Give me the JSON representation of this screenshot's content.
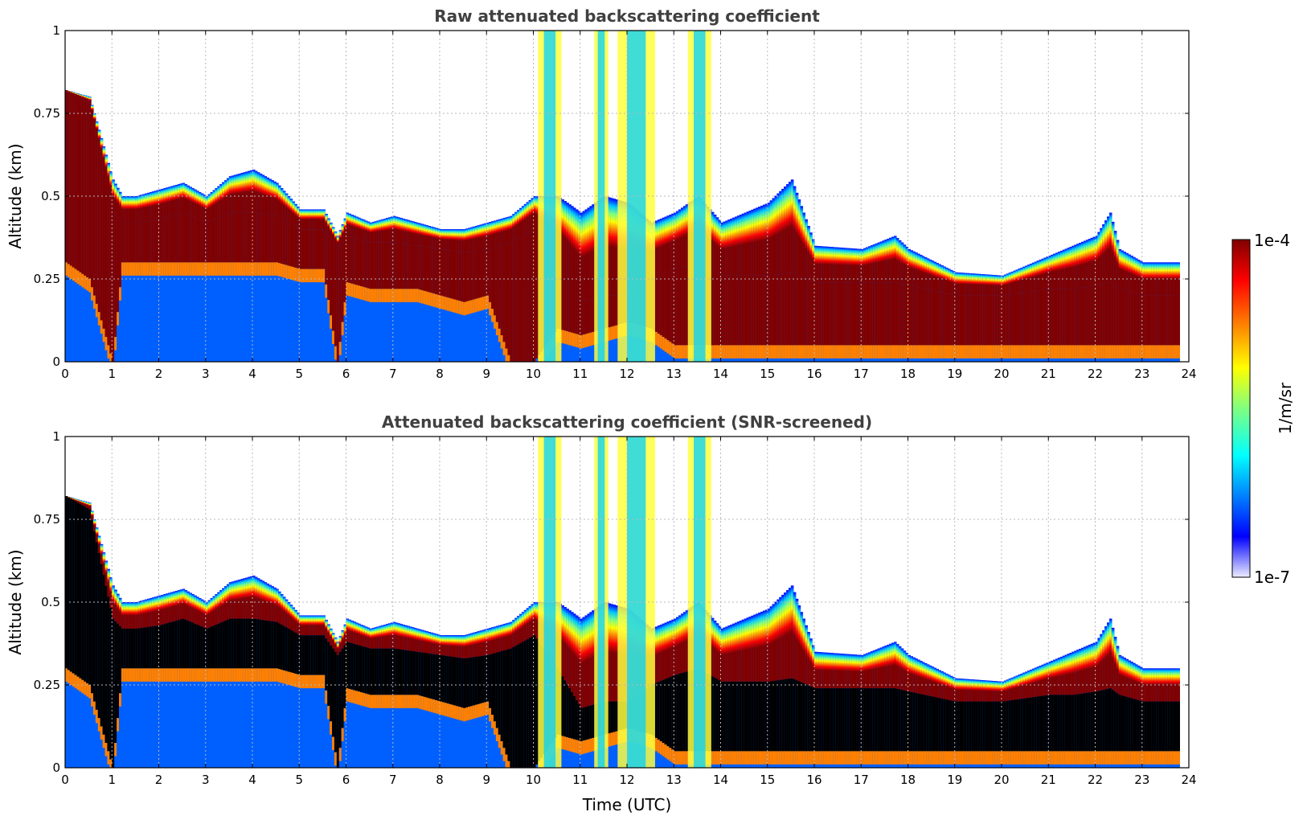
{
  "colors": {
    "colormap": [
      "#e8e8ff",
      "#0000ff",
      "#0080ff",
      "#00ffff",
      "#80ff80",
      "#ffff00",
      "#ff8000",
      "#ff0000",
      "#800000"
    ],
    "screened": "#000000",
    "grid": "#b8b8b8"
  },
  "chart_data": [
    {
      "type": "heatmap",
      "title": "Raw attenuated backscattering coefficient",
      "xlabel": "",
      "ylabel": "Altitude (km)",
      "xlim": [
        0,
        24
      ],
      "ylim": [
        0,
        1
      ],
      "xticks": [
        0,
        1,
        2,
        3,
        4,
        5,
        6,
        7,
        8,
        9,
        10,
        11,
        12,
        13,
        14,
        15,
        16,
        17,
        18,
        19,
        20,
        21,
        22,
        23,
        24
      ],
      "yticks": [
        0,
        0.25,
        0.5,
        0.75,
        1
      ],
      "ytick_labels": [
        "0",
        "0.25",
        "0.5",
        "0.75",
        "1"
      ],
      "grid": true,
      "data_end_hour": 23.8,
      "aerosol_layer": {
        "x": [
          0,
          0.5,
          1,
          1.2,
          1.5,
          2,
          2.5,
          3,
          3.5,
          4,
          4.5,
          5,
          5.5,
          5.8,
          6,
          6.5,
          7,
          7.5,
          8,
          8.5,
          9,
          9.5,
          10,
          10.5,
          11,
          11.5,
          12,
          12.5,
          13,
          13.5,
          14,
          14.5,
          15,
          15.5,
          16,
          17,
          17.7,
          18,
          19,
          20,
          21,
          21.5,
          22,
          22.3,
          22.5,
          23,
          23.8
        ],
        "top": [
          0.82,
          0.8,
          0.55,
          0.5,
          0.5,
          0.52,
          0.54,
          0.5,
          0.56,
          0.58,
          0.54,
          0.46,
          0.46,
          0.38,
          0.45,
          0.42,
          0.44,
          0.42,
          0.4,
          0.4,
          0.42,
          0.44,
          0.5,
          0.5,
          0.45,
          0.5,
          0.48,
          0.42,
          0.45,
          0.5,
          0.42,
          0.45,
          0.48,
          0.55,
          0.35,
          0.34,
          0.38,
          0.34,
          0.27,
          0.26,
          0.32,
          0.35,
          0.38,
          0.45,
          0.34,
          0.3,
          0.3
        ],
        "core_top": [
          0.82,
          0.78,
          0.45,
          0.42,
          0.42,
          0.43,
          0.45,
          0.42,
          0.45,
          0.45,
          0.44,
          0.4,
          0.4,
          0.34,
          0.38,
          0.36,
          0.36,
          0.35,
          0.34,
          0.33,
          0.34,
          0.36,
          0.4,
          0.3,
          0.18,
          0.2,
          0.2,
          0.25,
          0.28,
          0.3,
          0.26,
          0.26,
          0.26,
          0.27,
          0.24,
          0.24,
          0.24,
          0.23,
          0.2,
          0.2,
          0.22,
          0.22,
          0.23,
          0.24,
          0.22,
          0.2,
          0.2
        ],
        "core_bottom": [
          0.3,
          0.25,
          0.0,
          0.3,
          0.3,
          0.3,
          0.3,
          0.3,
          0.3,
          0.3,
          0.3,
          0.28,
          0.28,
          0.0,
          0.24,
          0.22,
          0.22,
          0.22,
          0.2,
          0.18,
          0.2,
          0.0,
          0.0,
          0.1,
          0.08,
          0.1,
          0.12,
          0.1,
          0.05,
          0.05,
          0.05,
          0.05,
          0.05,
          0.05,
          0.05,
          0.05,
          0.05,
          0.05,
          0.05,
          0.05,
          0.05,
          0.05,
          0.05,
          0.05,
          0.05,
          0.05,
          0.05
        ]
      },
      "clouds": [
        {
          "x": [
            10.1,
            10.6
          ],
          "top": 1.0,
          "label": ""
        },
        {
          "x": [
            11.3,
            11.6
          ],
          "top": 1.0,
          "label": ""
        },
        {
          "x": [
            11.8,
            12.6
          ],
          "top": 1.0,
          "label": ""
        },
        {
          "x": [
            13.3,
            13.8
          ],
          "top": 1.0,
          "label": ""
        }
      ]
    },
    {
      "type": "heatmap",
      "title": "Attenuated backscattering coefficient (SNR-screened)",
      "xlabel": "Time (UTC)",
      "ylabel": "Altitude (km)",
      "xlim": [
        0,
        24
      ],
      "ylim": [
        0,
        1
      ],
      "xticks": [
        0,
        1,
        2,
        3,
        4,
        5,
        6,
        7,
        8,
        9,
        10,
        11,
        12,
        13,
        14,
        15,
        16,
        17,
        18,
        19,
        20,
        21,
        22,
        23,
        24
      ],
      "yticks": [
        0,
        0.25,
        0.5,
        0.75,
        1
      ],
      "ytick_labels": [
        "0",
        "0.25",
        "0.5",
        "0.75",
        "1"
      ],
      "grid": true,
      "screened_color": "black"
    }
  ],
  "colorbar": {
    "label": "1/m/sr",
    "max_label": "1e-4",
    "min_label": "1e-7",
    "scale": "log",
    "range": [
      1e-07,
      0.0001
    ]
  }
}
